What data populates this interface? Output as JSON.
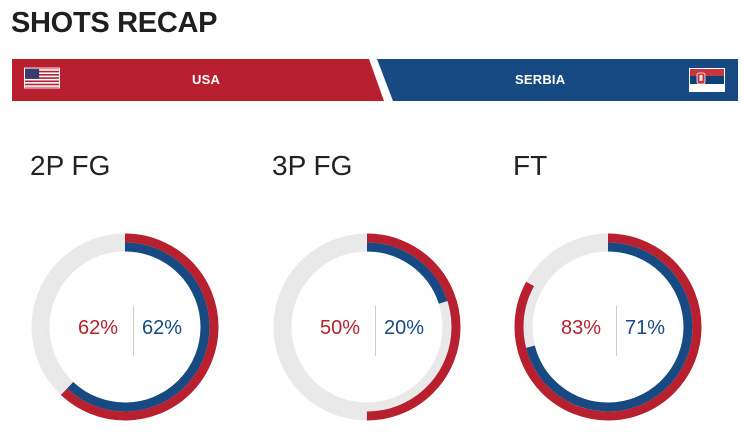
{
  "title": "SHOTS RECAP",
  "teams": {
    "home": {
      "name": "USA",
      "color": "#b8202f",
      "flag_icon": "usa-flag-icon"
    },
    "away": {
      "name": "SERBIA",
      "color": "#174a82",
      "flag_icon": "serbia-flag-icon"
    }
  },
  "ring_track_color": "#e9e9e9",
  "stats": [
    {
      "label": "2P FG",
      "home_pct": "62%",
      "away_pct": "62%",
      "home_value": 62,
      "away_value": 62
    },
    {
      "label": "3P FG",
      "home_pct": "50%",
      "away_pct": "20%",
      "home_value": 50,
      "away_value": 20
    },
    {
      "label": "FT",
      "home_pct": "83%",
      "away_pct": "71%",
      "home_value": 83,
      "away_value": 71
    }
  ]
}
